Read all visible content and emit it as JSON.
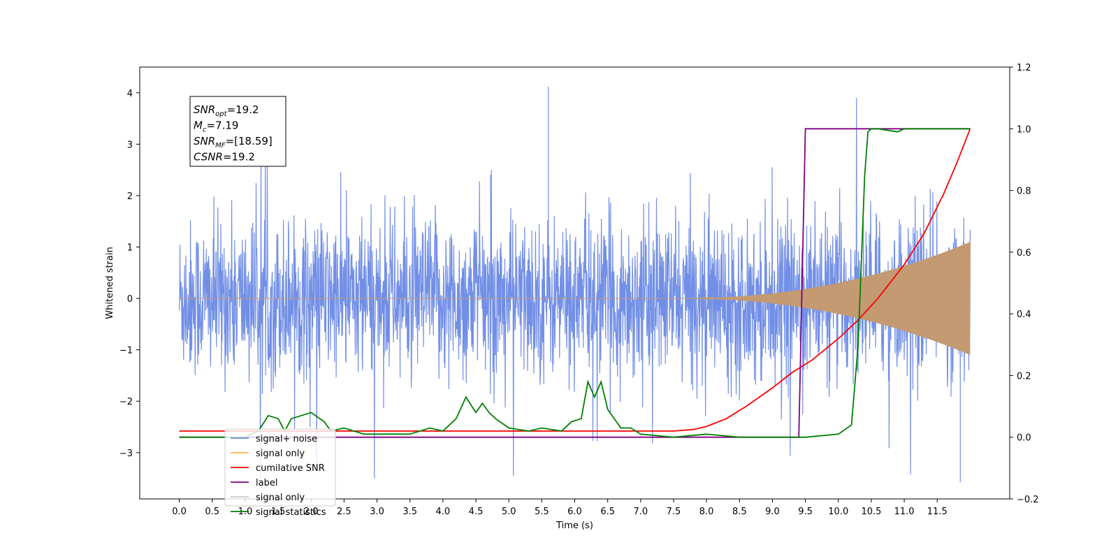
{
  "chart_data": {
    "type": "line",
    "xlabel": "Time (s)",
    "ylabel_left": "Whitened strain",
    "ylabel_right": "",
    "xlim": [
      -0.6,
      12.6
    ],
    "ylim_left": [
      -3.9,
      4.5
    ],
    "ylim_right": [
      -0.2,
      1.2
    ],
    "x_ticks": [
      0.0,
      0.5,
      1.0,
      1.5,
      2.0,
      2.5,
      3.0,
      3.5,
      4.0,
      4.5,
      5.0,
      5.5,
      6.0,
      6.5,
      7.0,
      7.5,
      8.0,
      8.5,
      9.0,
      9.5,
      10.0,
      10.5,
      11.0,
      11.5
    ],
    "x_tick_labels": [
      "0.0",
      "0.5",
      "1.0",
      "1.5",
      "2.0",
      "2.5",
      "3.0",
      "3.5",
      "4.0",
      "4.5",
      "5.0",
      "5.5",
      "6.0",
      "6.5",
      "7.0",
      "7.5",
      "8.0",
      "8.5",
      "9.0",
      "9.5",
      "10.0",
      "10.5",
      "11.0",
      "11.5"
    ],
    "y_left_ticks": [
      4,
      3,
      2,
      1,
      0,
      -1,
      -2,
      -3
    ],
    "y_left_tick_labels": [
      "4",
      "3",
      "2",
      "1",
      "0",
      "−1",
      "−2",
      "−3"
    ],
    "y_right_ticks": [
      1.2,
      1.0,
      0.8,
      0.6,
      0.4,
      0.2,
      0.0,
      -0.2
    ],
    "y_right_tick_labels": [
      "1.2",
      "1.0",
      "0.8",
      "0.6",
      "0.4",
      "0.2",
      "0.0",
      "−0.2"
    ],
    "grid": false,
    "legend_position": "lower-left",
    "annotation": {
      "lines": [
        {
          "main": "SNR",
          "sub": "opt",
          "rest": "=19.2"
        },
        {
          "main": "M",
          "sub": "c",
          "rest": "=7.19"
        },
        {
          "main": "SNR",
          "sub": "MF",
          "rest": "=[18.59]"
        },
        {
          "main": "CSNR",
          "sub": "",
          "rest": "=19.2"
        }
      ]
    },
    "series": [
      {
        "name": "signal+ noise",
        "color": "#6a89e6",
        "axis": "left",
        "description_values": {
          "x_range": [
            0.0,
            12.0
          ],
          "typical_envelope": [
            -1.5,
            1.5
          ],
          "peak_max": 4.12,
          "peak_max_x": 5.6,
          "peak_min": -3.57,
          "peak_min_x": 11.85
        }
      },
      {
        "name": "signal only",
        "color": "#ffb347",
        "axis": "left",
        "chirp": {
          "x_start": 7.5,
          "x_end": 12.0,
          "amp_end": 1.1
        }
      },
      {
        "name": "cumilative SNR",
        "color": "#ff0000",
        "axis": "right",
        "x": [
          0.0,
          7.5,
          7.8,
          8.0,
          8.3,
          8.6,
          9.0,
          9.3,
          9.6,
          10.0,
          10.3,
          10.6,
          11.0,
          11.3,
          11.6,
          11.8,
          12.0
        ],
        "values": [
          0.02,
          0.02,
          0.025,
          0.035,
          0.06,
          0.1,
          0.16,
          0.21,
          0.25,
          0.32,
          0.38,
          0.45,
          0.56,
          0.66,
          0.79,
          0.89,
          1.0
        ]
      },
      {
        "name": "label",
        "color": "#800080",
        "axis": "right",
        "x": [
          0.0,
          9.4,
          9.5,
          12.0
        ],
        "values": [
          0.0,
          0.0,
          1.0,
          1.0
        ]
      },
      {
        "name": "signal only",
        "color": "#cccccc",
        "axis": "right",
        "x": [],
        "values": []
      },
      {
        "name": "signal statistics",
        "color": "#008000",
        "axis": "right",
        "x": [
          0.0,
          0.5,
          1.0,
          1.2,
          1.35,
          1.5,
          1.6,
          1.7,
          1.85,
          2.0,
          2.2,
          2.3,
          2.5,
          2.8,
          3.0,
          3.5,
          3.8,
          4.0,
          4.2,
          4.35,
          4.5,
          4.6,
          4.7,
          4.8,
          5.0,
          5.3,
          5.5,
          5.8,
          5.95,
          6.1,
          6.2,
          6.3,
          6.4,
          6.5,
          6.7,
          6.85,
          7.0,
          7.5,
          8.0,
          8.5,
          9.0,
          9.5,
          10.0,
          10.2,
          10.3,
          10.4,
          10.45,
          10.5,
          10.6,
          10.9,
          11.0,
          12.0
        ],
        "values": [
          0.0,
          0.0,
          0.0,
          0.02,
          0.07,
          0.06,
          0.02,
          0.06,
          0.07,
          0.08,
          0.05,
          0.02,
          0.03,
          0.01,
          0.01,
          0.01,
          0.03,
          0.02,
          0.06,
          0.13,
          0.08,
          0.11,
          0.08,
          0.06,
          0.03,
          0.02,
          0.03,
          0.02,
          0.05,
          0.06,
          0.18,
          0.13,
          0.18,
          0.09,
          0.03,
          0.03,
          0.01,
          0.0,
          0.01,
          0.0,
          0.0,
          0.0,
          0.01,
          0.04,
          0.3,
          0.85,
          0.99,
          1.0,
          1.0,
          0.99,
          1.0,
          1.0
        ]
      }
    ]
  }
}
